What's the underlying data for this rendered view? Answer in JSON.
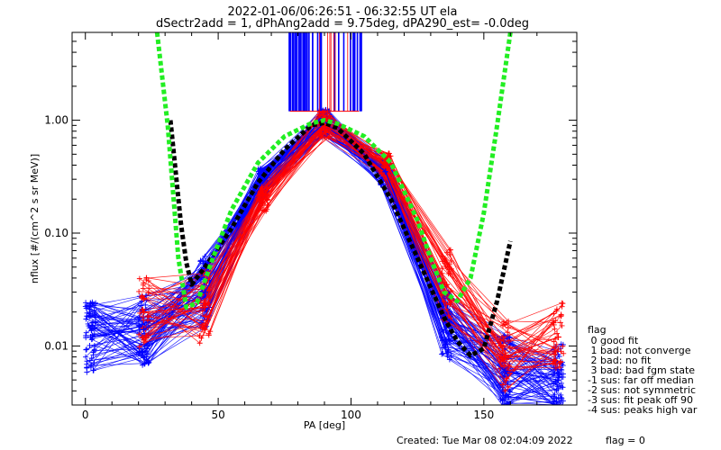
{
  "header": {
    "title_line1": "2022-01-06/06:26:51 - 06:32:55 UT ela",
    "title_line2": "dSectr2add = 1, dPhAng2add = 9.75deg, dPA290_est=  -0.0deg"
  },
  "footer": {
    "created": "Created: Tue Mar 08 02:04:09 2022",
    "flag": "flag = 0"
  },
  "legend": {
    "title": "flag",
    "entries": [
      " 0 good fit",
      " 1 bad: not converge",
      " 2 bad: no fit",
      " 3 bad: bad fgm state",
      "-1 sus: far off median",
      "-2 sus: not symmetric",
      "-3 sus: fit peak off 90",
      "-4 sus: peaks high var"
    ]
  },
  "colors": {
    "blue_series": "#0000ff",
    "red_series": "#ff0000",
    "fit_black": "#000000",
    "fit_green": "#22ee22"
  },
  "chart_data": {
    "type": "line",
    "xlabel": "PA [deg]",
    "ylabel": "nflux [#/(cm^2 s sr MeV)]",
    "xlim": [
      -5,
      185
    ],
    "ylim": [
      0.003,
      6.0
    ],
    "yscale": "log",
    "xticks": [
      0,
      50,
      100,
      150
    ],
    "yticks": [
      0.01,
      0.1,
      1.0
    ],
    "ytick_labels": [
      "0.01",
      "0.10",
      "1.00"
    ],
    "grid": false,
    "series": [
      {
        "color": "blue",
        "style": "line-with-plus-markers",
        "x": [
          2,
          22,
          45,
          67,
          90,
          113,
          136,
          158,
          178
        ],
        "y": [
          0.012,
          0.014,
          0.03,
          0.3,
          0.95,
          0.35,
          0.015,
          0.006,
          0.005
        ]
      },
      {
        "color": "red",
        "style": "line-with-plus-markers",
        "x": [
          22,
          45,
          67,
          90,
          113,
          136,
          158,
          178
        ],
        "y": [
          0.02,
          0.022,
          0.2,
          0.92,
          0.4,
          0.035,
          0.008,
          0.012
        ]
      },
      {
        "color": "black",
        "style": "thick-dashed-fit",
        "x": [
          32,
          36,
          38,
          40,
          45,
          55,
          65,
          75,
          85,
          90,
          95,
          105,
          115,
          125,
          135,
          140,
          145,
          150,
          155,
          160
        ],
        "y": [
          1.0,
          0.12,
          0.055,
          0.035,
          0.05,
          0.11,
          0.28,
          0.55,
          0.9,
          0.95,
          0.85,
          0.5,
          0.2,
          0.06,
          0.018,
          0.011,
          0.0082,
          0.0095,
          0.025,
          0.085
        ]
      },
      {
        "color": "green",
        "style": "thick-dashed-fit",
        "x": [
          27,
          31,
          35,
          38,
          42,
          48,
          55,
          65,
          75,
          85,
          90,
          95,
          105,
          115,
          125,
          130,
          135,
          140,
          145,
          150,
          155,
          160
        ],
        "y": [
          6.0,
          0.9,
          0.06,
          0.022,
          0.024,
          0.06,
          0.16,
          0.42,
          0.72,
          0.94,
          1.0,
          0.93,
          0.72,
          0.42,
          0.13,
          0.06,
          0.03,
          0.025,
          0.04,
          0.15,
          0.9,
          6.0
        ]
      }
    ]
  }
}
